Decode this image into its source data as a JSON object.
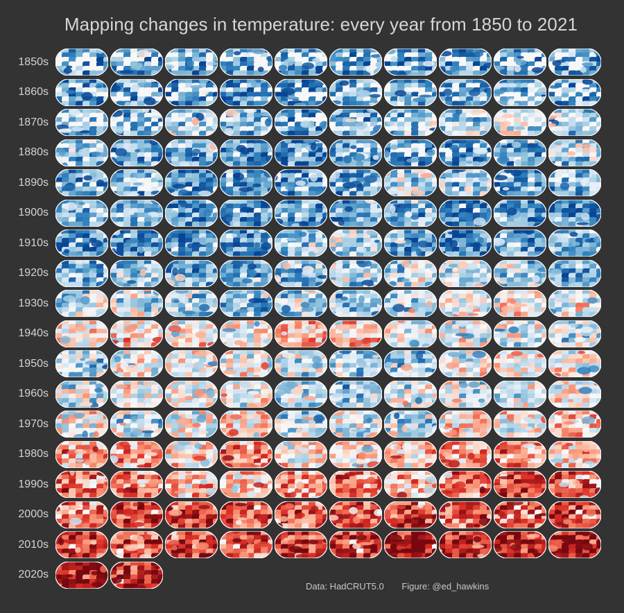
{
  "title": "Mapping changes in temperature: every year from 1850 to 2021",
  "credits": {
    "data_source": "Data: HadCRUT5.0",
    "figure_by": "Figure: @ed_hawkins"
  },
  "chart_data": {
    "type": "heatmap",
    "description_type": "small multiples of global annual temperature-anomaly maps",
    "title": "Mapping changes in temperature: every year from 1850 to 2021",
    "columns_per_row": 10,
    "rows": [
      {
        "label": "1850s",
        "start_year": 1850,
        "warmth": [
          0.16,
          0.18,
          0.14,
          0.12,
          0.15,
          0.17,
          0.13,
          0.16,
          0.18,
          0.2
        ]
      },
      {
        "label": "1860s",
        "start_year": 1860,
        "warmth": [
          0.18,
          0.22,
          0.2,
          0.15,
          0.12,
          0.24,
          0.22,
          0.18,
          0.24,
          0.22
        ]
      },
      {
        "label": "1870s",
        "start_year": 1870,
        "warmth": [
          0.26,
          0.22,
          0.3,
          0.24,
          0.22,
          0.26,
          0.28,
          0.36,
          0.42,
          0.3
        ]
      },
      {
        "label": "1880s",
        "start_year": 1880,
        "warmth": [
          0.3,
          0.22,
          0.24,
          0.2,
          0.16,
          0.2,
          0.22,
          0.18,
          0.24,
          0.34
        ]
      },
      {
        "label": "1890s",
        "start_year": 1890,
        "warmth": [
          0.2,
          0.24,
          0.16,
          0.18,
          0.2,
          0.24,
          0.34,
          0.32,
          0.2,
          0.28
        ]
      },
      {
        "label": "1900s",
        "start_year": 1900,
        "warmth": [
          0.28,
          0.3,
          0.22,
          0.18,
          0.16,
          0.22,
          0.26,
          0.14,
          0.16,
          0.18
        ]
      },
      {
        "label": "1910s",
        "start_year": 1910,
        "warmth": [
          0.16,
          0.16,
          0.18,
          0.2,
          0.3,
          0.36,
          0.2,
          0.14,
          0.2,
          0.24
        ]
      },
      {
        "label": "1920s",
        "start_year": 1920,
        "warmth": [
          0.24,
          0.3,
          0.24,
          0.26,
          0.26,
          0.34,
          0.4,
          0.36,
          0.34,
          0.22
        ]
      },
      {
        "label": "1930s",
        "start_year": 1930,
        "warmth": [
          0.38,
          0.42,
          0.34,
          0.26,
          0.36,
          0.34,
          0.38,
          0.46,
          0.48,
          0.46
        ]
      },
      {
        "label": "1940s",
        "start_year": 1940,
        "warmth": [
          0.54,
          0.56,
          0.52,
          0.5,
          0.62,
          0.58,
          0.44,
          0.46,
          0.42,
          0.4
        ]
      },
      {
        "label": "1950s",
        "start_year": 1950,
        "warmth": [
          0.32,
          0.44,
          0.48,
          0.52,
          0.38,
          0.34,
          0.32,
          0.48,
          0.5,
          0.48
        ]
      },
      {
        "label": "1960s",
        "start_year": 1960,
        "warmth": [
          0.42,
          0.48,
          0.46,
          0.46,
          0.34,
          0.34,
          0.42,
          0.44,
          0.4,
          0.5
        ]
      },
      {
        "label": "1970s",
        "start_year": 1970,
        "warmth": [
          0.48,
          0.38,
          0.46,
          0.56,
          0.38,
          0.42,
          0.36,
          0.56,
          0.5,
          0.58
        ]
      },
      {
        "label": "1980s",
        "start_year": 1980,
        "warmth": [
          0.66,
          0.68,
          0.56,
          0.66,
          0.56,
          0.54,
          0.58,
          0.68,
          0.7,
          0.6
        ]
      },
      {
        "label": "1990s",
        "start_year": 1990,
        "warmth": [
          0.72,
          0.7,
          0.6,
          0.62,
          0.66,
          0.72,
          0.66,
          0.74,
          0.84,
          0.7
        ]
      },
      {
        "label": "2000s",
        "start_year": 2000,
        "warmth": [
          0.7,
          0.78,
          0.8,
          0.8,
          0.78,
          0.82,
          0.8,
          0.82,
          0.74,
          0.82
        ]
      },
      {
        "label": "2010s",
        "start_year": 2010,
        "warmth": [
          0.86,
          0.78,
          0.8,
          0.82,
          0.84,
          0.9,
          0.94,
          0.9,
          0.88,
          0.92
        ]
      },
      {
        "label": "2020s",
        "start_year": 2020,
        "warmth": [
          0.94,
          0.88
        ]
      }
    ]
  }
}
